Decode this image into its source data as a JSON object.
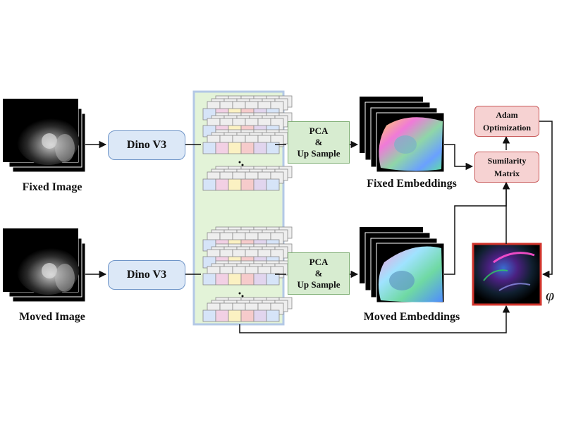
{
  "inputs": {
    "fixed_caption": "Fixed Image",
    "moved_caption": "Moved Image"
  },
  "encoders": {
    "top_label": "Dino V3",
    "bottom_label": "Dino V3"
  },
  "pca_blocks": {
    "top": [
      "PCA",
      "&",
      "Up Sample"
    ],
    "bottom": [
      "PCA",
      "&",
      "Up Sample"
    ]
  },
  "embeddings": {
    "fixed_caption": "Fixed Embeddings",
    "moved_caption": "Moved Embeddings"
  },
  "optimization": {
    "adam": [
      "Adam",
      "Optimization"
    ],
    "similarity": [
      "Sumilarity",
      "Matrix"
    ],
    "phi_symbol": "φ"
  },
  "colors": {
    "dino_fill": "#dce8f7",
    "dino_border": "#6f95c8",
    "pca_fill": "#d7ecd0",
    "pca_border": "#7fae74",
    "feature_panel_fill": "#e3f3d8",
    "feature_panel_border": "#b3c8e6",
    "red_fill": "#f6d2d2",
    "red_border": "#c85a5a",
    "token_colors": [
      "#d6e4f8",
      "#f2d0e4",
      "#fbf1c2",
      "#f6cbcb",
      "#e1d5ee",
      "#d6e4f8"
    ]
  }
}
